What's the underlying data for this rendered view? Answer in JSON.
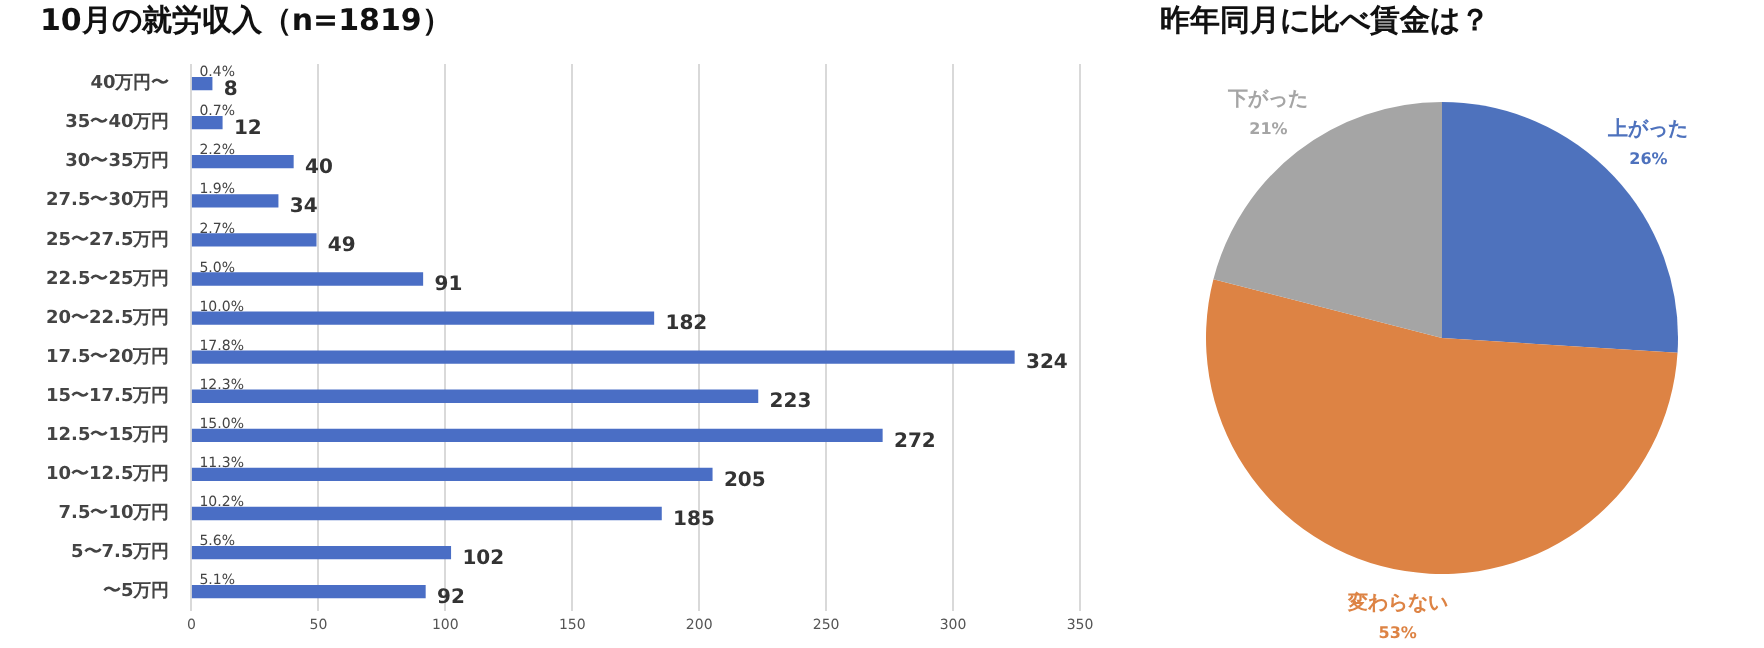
{
  "chart_data": [
    {
      "type": "bar",
      "orientation": "horizontal",
      "title": "10月の就労収入（n=1819）",
      "categories": [
        "40万円〜",
        "35〜40万円",
        "30〜35万円",
        "27.5〜30万円",
        "25〜27.5万円",
        "22.5〜25万円",
        "20〜22.5万円",
        "17.5〜20万円",
        "15〜17.5万円",
        "12.5〜15万円",
        "10〜12.5万円",
        "7.5〜10万円",
        "5〜7.5万円",
        "〜5万円"
      ],
      "values": [
        8,
        12,
        40,
        34,
        49,
        91,
        182,
        324,
        223,
        272,
        205,
        185,
        102,
        92
      ],
      "color": "#4a6ec5",
      "xlim": [
        0,
        350
      ],
      "xticks": [
        0,
        50,
        100,
        150,
        200,
        250,
        300,
        350
      ],
      "grid": "x",
      "legend": false,
      "data_labels": true,
      "annotations": [
        {
          "text": "0.4%",
          "y": "40万円〜"
        },
        {
          "text": "0.7%",
          "y": "35〜40万円"
        },
        {
          "text": "2.2%",
          "y": "30〜35万円"
        },
        {
          "text": "1.9%",
          "y": "27.5〜30万円"
        },
        {
          "text": "2.7%",
          "y": "25〜27.5万円"
        },
        {
          "text": "5.0%",
          "y": "22.5〜25万円"
        },
        {
          "text": "10.0%",
          "y": "20〜22.5万円"
        },
        {
          "text": "17.8%",
          "y": "17.5〜20万円"
        },
        {
          "text": "12.3%",
          "y": "15〜17.5万円"
        },
        {
          "text": "15.0%",
          "y": "12.5〜15万円"
        },
        {
          "text": "11.3%",
          "y": "10〜12.5万円"
        },
        {
          "text": "10.2%",
          "y": "7.5〜10万円"
        },
        {
          "text": "5.6%",
          "y": "5〜7.5万円"
        },
        {
          "text": "5.1%",
          "y": "〜5万円"
        }
      ]
    },
    {
      "type": "pie",
      "title": "昨年同月に比べ賃金は？",
      "categories": [
        "上がった",
        "変わらない",
        "下がった"
      ],
      "values": [
        26,
        53,
        21
      ],
      "colors": [
        "#4e72bd",
        "#dd8344",
        "#a5a5a5"
      ],
      "legend": false,
      "value_labels": [
        "26%",
        "53%",
        "21%"
      ]
    }
  ]
}
